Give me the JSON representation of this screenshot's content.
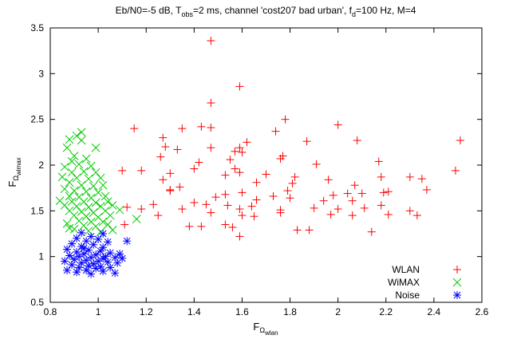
{
  "chart_data": {
    "type": "scatter",
    "title_parts": {
      "p1": "Eb/N0=-5 dB, T",
      "p1_sub": "obs",
      "p2": "=2 ms, channel 'cost207 bad urban', f",
      "p2_sub": "d",
      "p3": "=100 Hz, M=4"
    },
    "xlabel": {
      "base": "F",
      "sub": "Ω",
      "subsub": "wlan"
    },
    "ylabel": {
      "base": "F",
      "sub": "Ω",
      "subsub": "wimax"
    },
    "xlim": [
      0.8,
      2.6
    ],
    "ylim": [
      0.5,
      3.5
    ],
    "xticks": [
      "0.8",
      "1",
      "1.2",
      "1.4",
      "1.6",
      "1.8",
      "2",
      "2.2",
      "2.4",
      "2.6"
    ],
    "yticks": [
      "0.5",
      "1",
      "1.5",
      "2",
      "2.5",
      "3",
      "3.5"
    ],
    "grid": false,
    "legend_position": "bottom-right",
    "series": [
      {
        "name": "WLAN",
        "marker": "plus",
        "color": "#ff0000",
        "points": [
          [
            1.47,
            3.36
          ],
          [
            1.59,
            2.86
          ],
          [
            1.47,
            2.68
          ],
          [
            1.78,
            2.5
          ],
          [
            2.0,
            2.44
          ],
          [
            1.43,
            2.42
          ],
          [
            1.47,
            2.41
          ],
          [
            1.35,
            2.4
          ],
          [
            1.15,
            2.4
          ],
          [
            1.74,
            2.37
          ],
          [
            1.27,
            2.3
          ],
          [
            1.62,
            2.25
          ],
          [
            2.08,
            2.27
          ],
          [
            2.51,
            2.27
          ],
          [
            1.87,
            2.26
          ],
          [
            1.28,
            2.2
          ],
          [
            1.47,
            2.19
          ],
          [
            1.57,
            2.15
          ],
          [
            1.59,
            2.19
          ],
          [
            1.33,
            2.17
          ],
          [
            1.6,
            2.14
          ],
          [
            1.77,
            2.1
          ],
          [
            1.26,
            2.09
          ],
          [
            1.76,
            2.07
          ],
          [
            1.55,
            2.06
          ],
          [
            2.17,
            2.04
          ],
          [
            1.42,
            2.03
          ],
          [
            1.91,
            2.01
          ],
          [
            1.4,
            1.96
          ],
          [
            1.1,
            1.94
          ],
          [
            1.18,
            1.94
          ],
          [
            2.49,
            1.94
          ],
          [
            1.57,
            1.96
          ],
          [
            1.3,
            1.91
          ],
          [
            1.7,
            1.9
          ],
          [
            1.59,
            1.92
          ],
          [
            1.53,
            1.89
          ],
          [
            1.82,
            1.87
          ],
          [
            2.3,
            1.87
          ],
          [
            2.35,
            1.85
          ],
          [
            1.27,
            1.84
          ],
          [
            1.96,
            1.84
          ],
          [
            2.18,
            1.87
          ],
          [
            1.66,
            1.81
          ],
          [
            1.81,
            1.8
          ],
          [
            1.34,
            1.76
          ],
          [
            1.3,
            1.73
          ],
          [
            2.07,
            1.78
          ],
          [
            2.37,
            1.73
          ],
          [
            1.3,
            1.72
          ],
          [
            2.21,
            1.71
          ],
          [
            1.79,
            1.72
          ],
          [
            1.6,
            1.7
          ],
          [
            1.53,
            1.68
          ],
          [
            1.73,
            1.66
          ],
          [
            1.98,
            1.67
          ],
          [
            2.04,
            1.69
          ],
          [
            2.1,
            1.69
          ],
          [
            2.19,
            1.7
          ],
          [
            1.49,
            1.65
          ],
          [
            1.8,
            1.64
          ],
          [
            2.06,
            1.61
          ],
          [
            1.66,
            1.62
          ],
          [
            1.94,
            1.61
          ],
          [
            1.4,
            1.59
          ],
          [
            1.45,
            1.57
          ],
          [
            1.23,
            1.57
          ],
          [
            1.54,
            1.56
          ],
          [
            1.12,
            1.54
          ],
          [
            1.18,
            1.52
          ],
          [
            1.64,
            1.55
          ],
          [
            1.9,
            1.53
          ],
          [
            2.18,
            1.56
          ],
          [
            1.35,
            1.52
          ],
          [
            1.59,
            1.52
          ],
          [
            1.76,
            1.51
          ],
          [
            2.0,
            1.52
          ],
          [
            2.11,
            1.53
          ],
          [
            2.3,
            1.5
          ],
          [
            1.47,
            1.48
          ],
          [
            1.25,
            1.45
          ],
          [
            1.6,
            1.45
          ],
          [
            1.97,
            1.46
          ],
          [
            1.76,
            1.48
          ],
          [
            2.06,
            1.45
          ],
          [
            2.33,
            1.45
          ],
          [
            1.65,
            1.44
          ],
          [
            2.21,
            1.46
          ],
          [
            1.43,
            1.33
          ],
          [
            1.53,
            1.35
          ],
          [
            1.38,
            1.33
          ],
          [
            1.56,
            1.32
          ],
          [
            1.11,
            1.35
          ],
          [
            1.83,
            1.29
          ],
          [
            1.88,
            1.29
          ],
          [
            2.14,
            1.27
          ],
          [
            1.59,
            1.22
          ]
        ]
      },
      {
        "name": "WiMAX",
        "marker": "x",
        "color": "#00cc00",
        "points": [
          [
            0.93,
            2.36
          ],
          [
            0.91,
            2.32
          ],
          [
            0.93,
            2.27
          ],
          [
            0.88,
            2.28
          ],
          [
            0.99,
            2.19
          ],
          [
            0.87,
            2.19
          ],
          [
            0.9,
            2.1
          ],
          [
            0.95,
            2.07
          ],
          [
            0.89,
            2.04
          ],
          [
            0.92,
            2.01
          ],
          [
            0.97,
            1.99
          ],
          [
            0.86,
            1.98
          ],
          [
            0.89,
            1.92
          ],
          [
            0.94,
            1.93
          ],
          [
            0.99,
            1.92
          ],
          [
            0.85,
            1.87
          ],
          [
            0.91,
            1.86
          ],
          [
            0.96,
            1.85
          ],
          [
            1.01,
            1.86
          ],
          [
            0.88,
            1.81
          ],
          [
            0.93,
            1.78
          ],
          [
            0.98,
            1.77
          ],
          [
            1.02,
            1.78
          ],
          [
            0.86,
            1.74
          ],
          [
            0.9,
            1.72
          ],
          [
            0.95,
            1.71
          ],
          [
            1.0,
            1.7
          ],
          [
            0.88,
            1.66
          ],
          [
            0.92,
            1.65
          ],
          [
            0.97,
            1.64
          ],
          [
            1.03,
            1.66
          ],
          [
            0.84,
            1.61
          ],
          [
            0.89,
            1.6
          ],
          [
            0.94,
            1.6
          ],
          [
            0.99,
            1.59
          ],
          [
            1.04,
            1.6
          ],
          [
            0.86,
            1.56
          ],
          [
            0.91,
            1.55
          ],
          [
            0.96,
            1.54
          ],
          [
            1.01,
            1.55
          ],
          [
            1.06,
            1.56
          ],
          [
            0.88,
            1.5
          ],
          [
            0.93,
            1.49
          ],
          [
            0.98,
            1.48
          ],
          [
            1.03,
            1.5
          ],
          [
            1.09,
            1.51
          ],
          [
            0.9,
            1.45
          ],
          [
            0.95,
            1.44
          ],
          [
            1.0,
            1.43
          ],
          [
            1.05,
            1.45
          ],
          [
            1.16,
            1.41
          ],
          [
            0.92,
            1.39
          ],
          [
            0.97,
            1.38
          ],
          [
            1.02,
            1.38
          ],
          [
            0.87,
            1.36
          ],
          [
            0.94,
            1.34
          ],
          [
            0.99,
            1.33
          ],
          [
            1.04,
            1.35
          ],
          [
            0.9,
            1.3
          ],
          [
            0.96,
            1.28
          ],
          [
            1.01,
            1.27
          ],
          [
            0.88,
            1.31
          ],
          [
            1.06,
            1.29
          ]
        ]
      },
      {
        "name": "Noise",
        "marker": "star",
        "color": "#0000ff",
        "points": [
          [
            0.93,
            1.26
          ],
          [
            1.02,
            1.25
          ],
          [
            0.97,
            1.22
          ],
          [
            0.91,
            1.2
          ],
          [
            1.0,
            1.19
          ],
          [
            0.95,
            1.17
          ],
          [
            1.04,
            1.16
          ],
          [
            1.12,
            1.17
          ],
          [
            0.89,
            1.14
          ],
          [
            0.98,
            1.13
          ],
          [
            0.93,
            1.11
          ],
          [
            1.02,
            1.1
          ],
          [
            0.87,
            1.08
          ],
          [
            0.96,
            1.07
          ],
          [
            1.01,
            1.06
          ],
          [
            0.91,
            1.05
          ],
          [
            1.05,
            1.04
          ],
          [
            0.94,
            1.03
          ],
          [
            0.99,
            1.02
          ],
          [
            1.09,
            1.03
          ],
          [
            0.88,
            1.01
          ],
          [
            0.92,
            1.0
          ],
          [
            0.97,
            0.99
          ],
          [
            1.02,
            0.98
          ],
          [
            1.07,
            0.99
          ],
          [
            0.9,
            0.97
          ],
          [
            0.95,
            0.96
          ],
          [
            1.0,
            0.95
          ],
          [
            0.86,
            0.95
          ],
          [
            1.04,
            0.94
          ],
          [
            0.93,
            0.93
          ],
          [
            0.98,
            0.92
          ],
          [
            1.08,
            0.93
          ],
          [
            0.89,
            0.91
          ],
          [
            0.96,
            0.9
          ],
          [
            1.01,
            0.89
          ],
          [
            0.92,
            0.88
          ],
          [
            0.99,
            0.87
          ],
          [
            1.05,
            0.88
          ],
          [
            0.87,
            0.85
          ],
          [
            0.95,
            0.85
          ],
          [
            1.02,
            0.84
          ],
          [
            0.91,
            0.83
          ],
          [
            1.07,
            0.82
          ],
          [
            0.97,
            0.81
          ],
          [
            1.1,
            0.98
          ],
          [
            0.94,
            1.09
          ],
          [
            1.03,
            1.0
          ]
        ]
      }
    ]
  }
}
